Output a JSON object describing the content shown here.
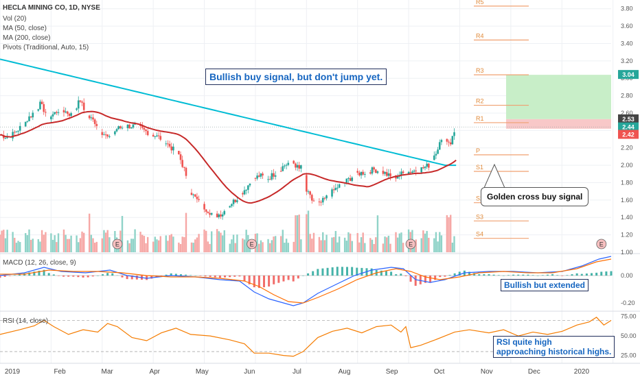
{
  "legend": {
    "title": "HECLA MINING CO, 1D, NYSE",
    "items": [
      "Vol (20)",
      "MA (50, close)",
      "MA (200, close)",
      "Pivots (Traditional, Auto, 15)"
    ]
  },
  "colors": {
    "up": "#26a69a",
    "down": "#ef5350",
    "ma50": "#c62828",
    "ma200": "#00bcd4",
    "pivot": "#f0a070",
    "annot": "#1565c0",
    "macd": "#2962ff",
    "signal": "#ff6d00",
    "rsi": "#f57c00",
    "target": "#c8eec8",
    "stop": "#f8c8c8"
  },
  "annotations": {
    "headline": "Bullish buy signal, but don't jump yet.",
    "golden_cross": "Golden cross buy signal",
    "macd_note": "Bullish but extended",
    "rsi_note_line1": "RSI quite high",
    "rsi_note_line2": "approaching historical highs."
  },
  "panes": {
    "macd_label": "MACD (12, 26, close, 9)",
    "rsi_label": "RSI (14, close)"
  },
  "chart_data": [
    {
      "type": "candlestick",
      "title": "HECLA MINING CO, 1D, NYSE",
      "x_labels": [
        "2019",
        "Feb",
        "Mar",
        "Apr",
        "May",
        "Jun",
        "Jul",
        "Aug",
        "Sep",
        "Oct",
        "Nov",
        "Dec",
        "2020"
      ],
      "ylim": [
        1.0,
        3.9
      ],
      "y_ticks": [
        "3.80",
        "3.60",
        "3.40",
        "3.20",
        "3.00",
        "2.80",
        "2.60",
        "2.40",
        "2.20",
        "2.00",
        "1.80",
        "1.60",
        "1.40",
        "1.20",
        "1.00"
      ],
      "close_path": [
        [
          0,
          2.35
        ],
        [
          5,
          2.32
        ],
        [
          12,
          2.45
        ],
        [
          18,
          2.6
        ],
        [
          22,
          2.7
        ],
        [
          27,
          2.55
        ],
        [
          33,
          2.65
        ],
        [
          39,
          2.58
        ],
        [
          44,
          2.75
        ],
        [
          47,
          2.58
        ],
        [
          52,
          2.5
        ],
        [
          56,
          2.38
        ],
        [
          60,
          2.3
        ],
        [
          64,
          2.42
        ],
        [
          70,
          2.45
        ],
        [
          75,
          2.45
        ],
        [
          79,
          2.4
        ],
        [
          84,
          2.35
        ],
        [
          89,
          2.3
        ],
        [
          94,
          2.2
        ],
        [
          98,
          2.12
        ],
        [
          101,
          1.95
        ],
        [
          103,
          1.75
        ],
        [
          106,
          1.65
        ],
        [
          110,
          1.55
        ],
        [
          114,
          1.48
        ],
        [
          118,
          1.42
        ],
        [
          122,
          1.45
        ],
        [
          126,
          1.55
        ],
        [
          130,
          1.62
        ],
        [
          134,
          1.72
        ],
        [
          138,
          1.82
        ],
        [
          142,
          1.88
        ],
        [
          147,
          1.85
        ],
        [
          152,
          1.93
        ],
        [
          156,
          2.0
        ],
        [
          160,
          2.05
        ],
        [
          164,
          1.95
        ],
        [
          166,
          2.05
        ],
        [
          168,
          1.7
        ],
        [
          171,
          1.6
        ],
        [
          175,
          1.55
        ],
        [
          180,
          1.65
        ],
        [
          185,
          1.75
        ],
        [
          190,
          1.82
        ],
        [
          195,
          1.9
        ],
        [
          200,
          1.92
        ],
        [
          205,
          1.95
        ],
        [
          210,
          1.92
        ],
        [
          215,
          1.85
        ],
        [
          220,
          1.9
        ],
        [
          225,
          1.93
        ],
        [
          230,
          1.95
        ],
        [
          235,
          2.0
        ],
        [
          238,
          2.12
        ],
        [
          241,
          2.25
        ],
        [
          244,
          2.3
        ],
        [
          247,
          2.26
        ],
        [
          250,
          2.44
        ]
      ],
      "volume_spike_bars": [
        48,
        68,
        103,
        163,
        168,
        208,
        246
      ],
      "earnings_markers": [
        48,
        103,
        168,
        246
      ],
      "earnings_label": "E",
      "pivots": [
        {
          "name": "R5",
          "value": 3.83
        },
        {
          "name": "R4",
          "value": 3.44
        },
        {
          "name": "R3",
          "value": 3.04
        },
        {
          "name": "R2",
          "value": 2.69
        },
        {
          "name": "R1",
          "value": 2.49
        },
        {
          "name": "P",
          "value": 2.12
        },
        {
          "name": "S1",
          "value": 1.93
        },
        {
          "name": "S2",
          "value": 1.57
        },
        {
          "name": "S3",
          "value": 1.36
        },
        {
          "name": "S4",
          "value": 1.16
        }
      ],
      "price_labels": [
        {
          "text": "3.04",
          "value": 3.04,
          "color": "#26a69a"
        },
        {
          "text": "2.53",
          "value": 2.53,
          "color": "#444444"
        },
        {
          "text": "2.44",
          "value": 2.44,
          "color": "#26a69a"
        },
        {
          "text": "2.42",
          "value": 2.42,
          "color": "#ef5350"
        }
      ],
      "target_zone": [
        2.53,
        3.04
      ],
      "stop_zone": [
        2.42,
        2.53
      ]
    },
    {
      "type": "macd",
      "title": "MACD (12, 26, close, 9)",
      "ylim": [
        -0.25,
        0.15
      ],
      "y_ticks": [
        "0.00",
        "-0.20"
      ],
      "macd_path": [
        [
          0,
          0.0
        ],
        [
          10,
          0.02
        ],
        [
          18,
          0.06
        ],
        [
          25,
          0.03
        ],
        [
          35,
          0.02
        ],
        [
          45,
          0.04
        ],
        [
          52,
          0.0
        ],
        [
          60,
          -0.02
        ],
        [
          70,
          0.0
        ],
        [
          80,
          -0.01
        ],
        [
          90,
          -0.03
        ],
        [
          98,
          -0.04
        ],
        [
          104,
          -0.12
        ],
        [
          110,
          -0.17
        ],
        [
          116,
          -0.2
        ],
        [
          120,
          -0.22
        ],
        [
          124,
          -0.2
        ],
        [
          130,
          -0.13
        ],
        [
          138,
          -0.06
        ],
        [
          145,
          0.0
        ],
        [
          152,
          0.04
        ],
        [
          160,
          0.06
        ],
        [
          165,
          0.05
        ],
        [
          170,
          -0.03
        ],
        [
          176,
          -0.05
        ],
        [
          182,
          -0.03
        ],
        [
          190,
          0.02
        ],
        [
          200,
          0.03
        ],
        [
          210,
          0.03
        ],
        [
          220,
          0.02
        ],
        [
          230,
          0.03
        ],
        [
          238,
          0.07
        ],
        [
          245,
          0.12
        ],
        [
          250,
          0.14
        ]
      ],
      "signal_path": [
        [
          0,
          0.01
        ],
        [
          10,
          0.01
        ],
        [
          20,
          0.04
        ],
        [
          30,
          0.03
        ],
        [
          40,
          0.03
        ],
        [
          50,
          0.02
        ],
        [
          60,
          0.0
        ],
        [
          70,
          -0.01
        ],
        [
          80,
          -0.01
        ],
        [
          90,
          -0.02
        ],
        [
          100,
          -0.04
        ],
        [
          106,
          -0.08
        ],
        [
          112,
          -0.14
        ],
        [
          118,
          -0.19
        ],
        [
          124,
          -0.2
        ],
        [
          130,
          -0.16
        ],
        [
          138,
          -0.1
        ],
        [
          146,
          -0.03
        ],
        [
          154,
          0.02
        ],
        [
          162,
          0.05
        ],
        [
          168,
          0.03
        ],
        [
          174,
          -0.01
        ],
        [
          180,
          -0.03
        ],
        [
          188,
          -0.01
        ],
        [
          196,
          0.02
        ],
        [
          206,
          0.03
        ],
        [
          216,
          0.02
        ],
        [
          226,
          0.02
        ],
        [
          236,
          0.05
        ],
        [
          244,
          0.1
        ],
        [
          250,
          0.12
        ]
      ]
    },
    {
      "type": "line",
      "title": "RSI (14, close)",
      "ylim": [
        15,
        80
      ],
      "y_ticks": [
        "75.00",
        "50.00",
        "25.00"
      ],
      "bands": [
        70,
        30
      ],
      "rsi_path": [
        [
          0,
          52
        ],
        [
          8,
          58
        ],
        [
          14,
          63
        ],
        [
          18,
          70
        ],
        [
          22,
          62
        ],
        [
          28,
          52
        ],
        [
          34,
          58
        ],
        [
          40,
          55
        ],
        [
          44,
          66
        ],
        [
          48,
          62
        ],
        [
          54,
          48
        ],
        [
          60,
          44
        ],
        [
          66,
          54
        ],
        [
          72,
          60
        ],
        [
          78,
          52
        ],
        [
          86,
          50
        ],
        [
          94,
          45
        ],
        [
          100,
          40
        ],
        [
          104,
          28
        ],
        [
          110,
          28
        ],
        [
          116,
          25
        ],
        [
          120,
          24
        ],
        [
          124,
          30
        ],
        [
          130,
          48
        ],
        [
          136,
          56
        ],
        [
          142,
          60
        ],
        [
          148,
          54
        ],
        [
          154,
          62
        ],
        [
          160,
          64
        ],
        [
          164,
          55
        ],
        [
          166,
          62
        ],
        [
          168,
          35
        ],
        [
          172,
          38
        ],
        [
          178,
          45
        ],
        [
          186,
          55
        ],
        [
          192,
          58
        ],
        [
          200,
          54
        ],
        [
          206,
          58
        ],
        [
          212,
          50
        ],
        [
          218,
          55
        ],
        [
          224,
          52
        ],
        [
          230,
          56
        ],
        [
          236,
          64
        ],
        [
          241,
          68
        ],
        [
          244,
          74
        ],
        [
          247,
          64
        ],
        [
          250,
          70
        ]
      ]
    }
  ]
}
